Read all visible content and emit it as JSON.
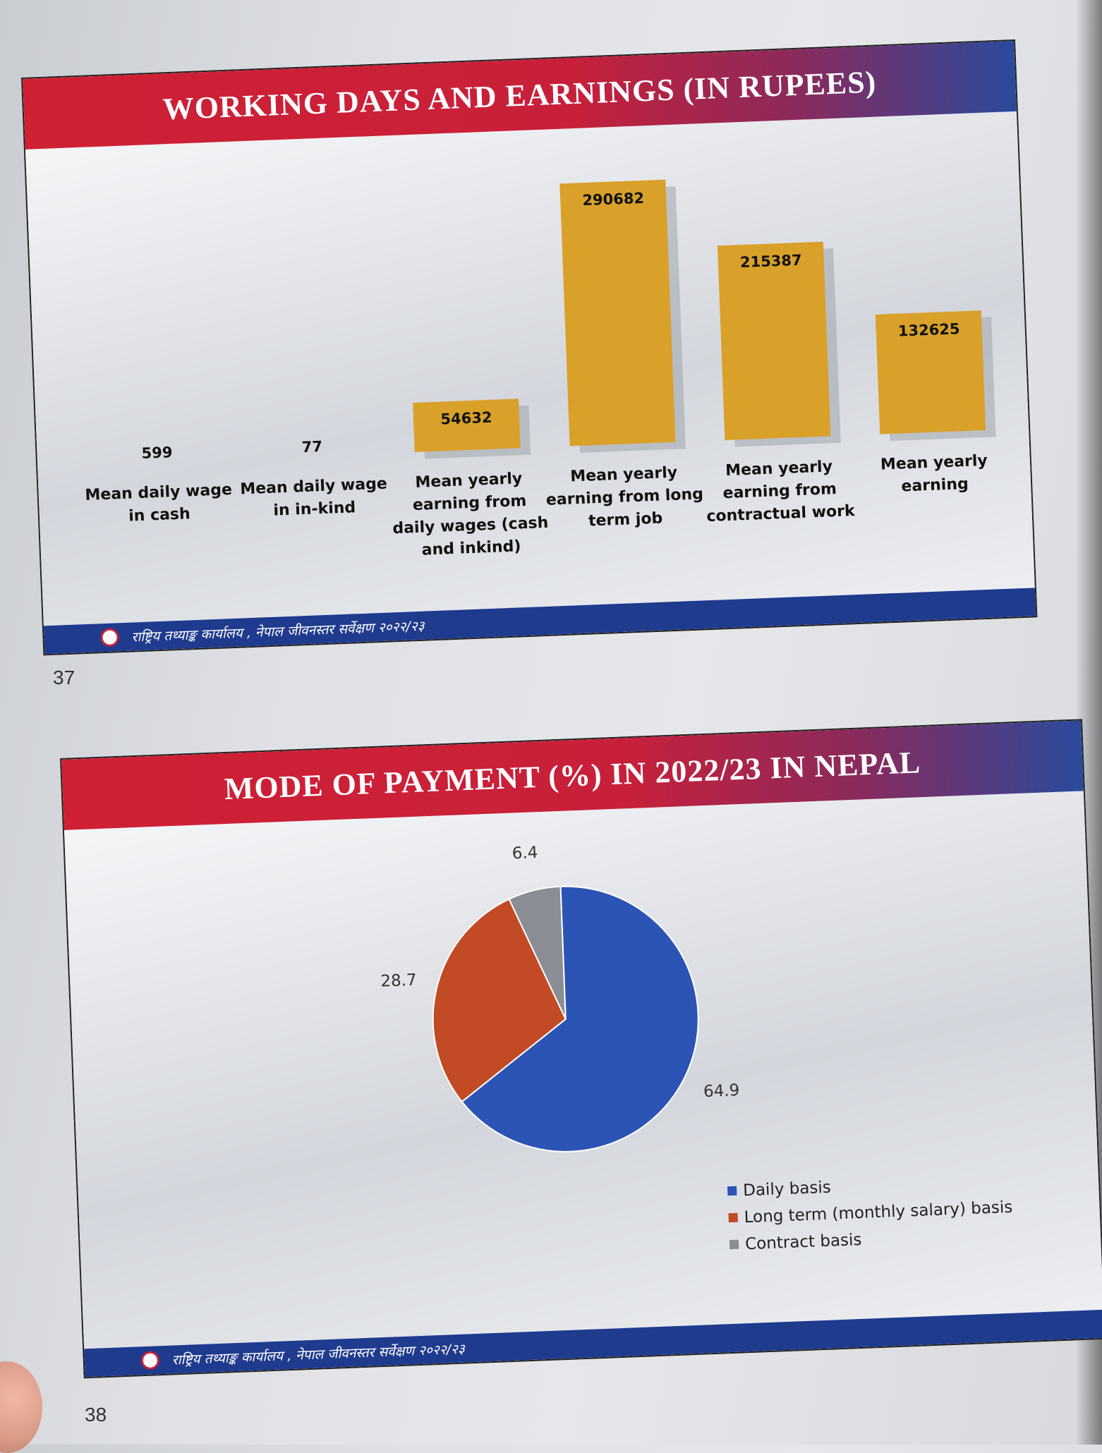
{
  "slides": [
    {
      "title": "WORKING DAYS AND EARNINGS (IN RUPEES)",
      "footer": "राष्ट्रिय तथ्याङ्क कार्यालय , नेपाल जीवनस्तर सर्वेक्षण २०२२/२३",
      "page_number": "37"
    },
    {
      "title": "MODE OF PAYMENT (%) IN 2022/23 IN NEPAL",
      "footer": "राष्ट्रिय तथ्याङ्क कार्यालय , नेपाल जीवनस्तर सर्वेक्षण २०२२/२३",
      "page_number": "38"
    }
  ],
  "colors": {
    "bar": "#d9a12a",
    "daily": "#2c54b5",
    "long_term": "#c24a24",
    "contract": "#8a8d93"
  },
  "chart_data": [
    {
      "type": "bar",
      "title": "WORKING DAYS AND EARNINGS (IN RUPEES)",
      "categories": [
        [
          "Mean daily wage",
          "in cash"
        ],
        [
          "Mean daily wage",
          "in in-kind"
        ],
        [
          "Mean yearly",
          "earning from",
          "daily wages (cash",
          "and inkind)"
        ],
        [
          "Mean yearly",
          "earning from long",
          "term job"
        ],
        [
          "Mean yearly",
          "earning from",
          "contractual work"
        ],
        [
          "Mean yearly",
          "earning"
        ]
      ],
      "values": [
        599,
        77,
        54632,
        290682,
        215387,
        132625
      ],
      "value_labels": [
        "599",
        "77",
        "54632",
        "290682",
        "215387",
        "132625"
      ],
      "ylim": [
        0,
        320000
      ],
      "xlabel": "",
      "ylabel": ""
    },
    {
      "type": "pie",
      "title": "MODE OF PAYMENT (%) IN 2022/23 IN NEPAL",
      "labels": [
        "Daily basis",
        "Long term (monthly salary) basis",
        "Contract basis"
      ],
      "values": [
        64.9,
        28.7,
        6.4
      ],
      "value_labels": [
        "64.9",
        "28.7",
        "6.4"
      ],
      "legend_position": "bottom-right"
    }
  ]
}
